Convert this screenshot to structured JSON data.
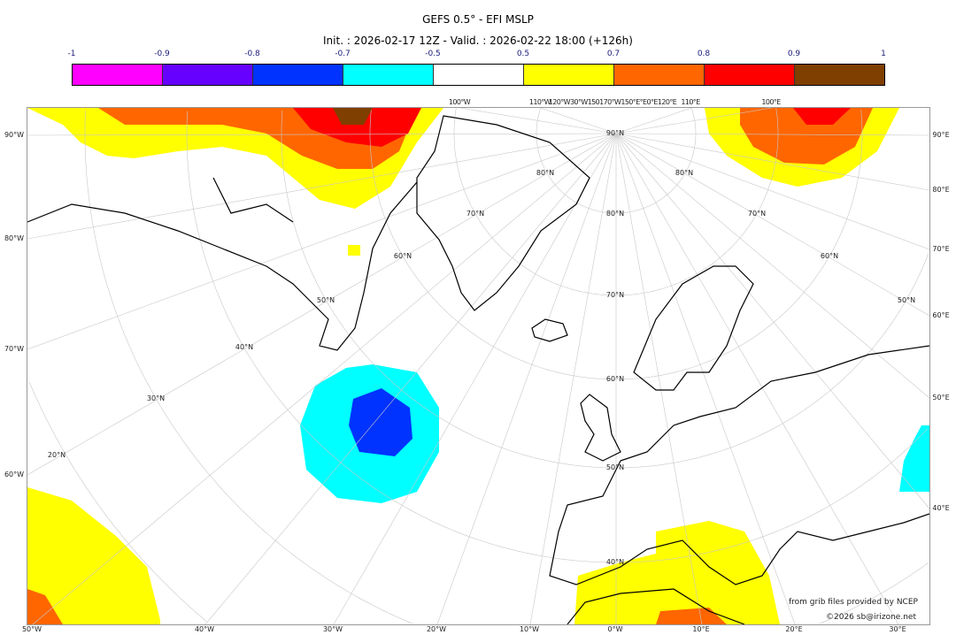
{
  "title": "GEFS 0.5° - EFI MSLP",
  "subtitle": "Init. : 2026-02-17 12Z - Valid. : 2026-02-22 18:00 (+126h)",
  "colorbar": {
    "ticks": [
      "-1",
      "-0.9",
      "-0.8",
      "-0.7",
      "-0.5",
      "0.5",
      "0.7",
      "0.8",
      "0.9",
      "1"
    ],
    "colors": [
      "#ff00ff",
      "#6600ff",
      "#0033ff",
      "#00ffff",
      "#ffffff",
      "#ffff00",
      "#ff6600",
      "#ff0000",
      "#ff0000",
      "#7f3f00"
    ],
    "bins": [
      {
        "color": "#ff00ff"
      },
      {
        "color": "#6600ff"
      },
      {
        "color": "#0033ff"
      },
      {
        "color": "#00ffff"
      },
      {
        "color": "#ffffff"
      },
      {
        "color": "#ffff00"
      },
      {
        "color": "#ff6600"
      },
      {
        "color": "#ff0000"
      },
      {
        "color": "#7f3f00"
      }
    ]
  },
  "labels": {
    "bottom": [
      "50°W",
      "40°W",
      "30°W",
      "20°W",
      "10°W",
      "0°W",
      "10°E",
      "20°E",
      "30°E"
    ],
    "left": [
      "90°W",
      "80°W",
      "70°W",
      "60°W"
    ],
    "right": [
      "90°E",
      "80°E",
      "70°E",
      "60°E",
      "50°E",
      "40°E"
    ],
    "top": [
      "100°W",
      "110°W",
      "120°W30°W150170°W150°E°E0°E120°E",
      "110°E",
      "100°E"
    ],
    "lat": [
      "90°N",
      "80°N",
      "80°N",
      "80°N",
      "70°N",
      "70°N",
      "70°N",
      "60°N",
      "60°N",
      "60°N",
      "50°N",
      "50°N",
      "50°N",
      "40°N",
      "40°N",
      "30°N",
      "20°N"
    ]
  },
  "credits": {
    "source": "from grib files provided by NCEP",
    "copyright": "©2026 sb@irizone.net"
  }
}
